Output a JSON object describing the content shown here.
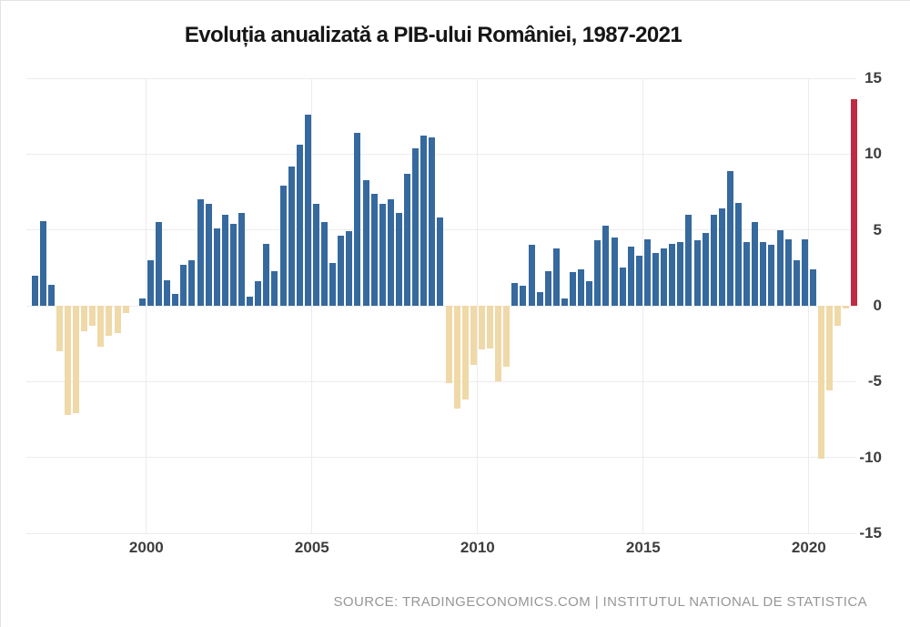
{
  "title": "Evoluția anualizată a PIB-ului României, 1987-2021",
  "source_line": "SOURCE: TRADINGECONOMICS.COM | INSTITUTUL NATIONAL DE STATISTICA",
  "colors": {
    "positive_bar": "#36699e",
    "negative_bar": "#f0d9a8",
    "highlight_bar": "#c02a43",
    "grid": "#ececec",
    "axis_text": "#3d3d3d",
    "source_text": "#969696",
    "title_text": "#161616"
  },
  "chart_data": {
    "type": "bar",
    "title": "Evoluția anualizată a PIB-ului României, 1987-2021",
    "ylabel": "",
    "xlabel": "",
    "frequency": "quarterly",
    "ylim": [
      -15,
      15
    ],
    "y_axis_ticks": [
      15,
      10,
      5,
      0,
      -5,
      -10,
      -15
    ],
    "x_axis_ticks": [
      "2000",
      "2005",
      "2010",
      "2015",
      "2020"
    ],
    "grid": true,
    "legend": "none",
    "highlight_last_bar": true,
    "labels": [
      "1996 Q3",
      "1996 Q4",
      "1997 Q1",
      "1997 Q2",
      "1997 Q3",
      "1997 Q4",
      "1998 Q1",
      "1998 Q2",
      "1998 Q3",
      "1998 Q4",
      "1999 Q1",
      "1999 Q2",
      "1999 Q3",
      "1999 Q4",
      "2000 Q1",
      "2000 Q2",
      "2000 Q3",
      "2000 Q4",
      "2001 Q1",
      "2001 Q2",
      "2001 Q3",
      "2001 Q4",
      "2002 Q1",
      "2002 Q2",
      "2002 Q3",
      "2002 Q4",
      "2003 Q1",
      "2003 Q2",
      "2003 Q3",
      "2003 Q4",
      "2004 Q1",
      "2004 Q2",
      "2004 Q3",
      "2004 Q4",
      "2005 Q1",
      "2005 Q2",
      "2005 Q3",
      "2005 Q4",
      "2006 Q1",
      "2006 Q2",
      "2006 Q3",
      "2006 Q4",
      "2007 Q1",
      "2007 Q2",
      "2007 Q3",
      "2007 Q4",
      "2008 Q1",
      "2008 Q2",
      "2008 Q3",
      "2008 Q4",
      "2009 Q1",
      "2009 Q2",
      "2009 Q3",
      "2009 Q4",
      "2010 Q1",
      "2010 Q2",
      "2010 Q3",
      "2010 Q4",
      "2011 Q1",
      "2011 Q2",
      "2011 Q3",
      "2011 Q4",
      "2012 Q1",
      "2012 Q2",
      "2012 Q3",
      "2012 Q4",
      "2013 Q1",
      "2013 Q2",
      "2013 Q3",
      "2013 Q4",
      "2014 Q1",
      "2014 Q2",
      "2014 Q3",
      "2014 Q4",
      "2015 Q1",
      "2015 Q2",
      "2015 Q3",
      "2015 Q4",
      "2016 Q1",
      "2016 Q2",
      "2016 Q3",
      "2016 Q4",
      "2017 Q1",
      "2017 Q2",
      "2017 Q3",
      "2017 Q4",
      "2018 Q1",
      "2018 Q2",
      "2018 Q3",
      "2018 Q4",
      "2019 Q1",
      "2019 Q2",
      "2019 Q3",
      "2019 Q4",
      "2020 Q1",
      "2020 Q2",
      "2020 Q3",
      "2020 Q4",
      "2021 Q1",
      "2021 Q2"
    ],
    "values": [
      2.0,
      5.6,
      1.4,
      -3.0,
      -7.2,
      -7.1,
      -1.7,
      -1.3,
      -2.7,
      -2.0,
      -1.8,
      -0.5,
      0.0,
      0.5,
      3.0,
      5.5,
      1.7,
      0.8,
      2.7,
      3.0,
      7.0,
      6.7,
      5.1,
      6.0,
      5.4,
      6.1,
      0.6,
      1.6,
      4.1,
      2.3,
      7.9,
      9.2,
      10.6,
      12.6,
      6.7,
      5.5,
      2.8,
      4.6,
      4.9,
      11.4,
      8.3,
      7.4,
      6.7,
      7.0,
      6.1,
      8.7,
      10.4,
      11.2,
      11.1,
      5.8,
      -5.1,
      -6.8,
      -6.2,
      -3.9,
      -2.9,
      -2.8,
      -5.0,
      -4.0,
      1.5,
      1.3,
      4.0,
      0.9,
      2.3,
      3.8,
      0.5,
      2.2,
      2.4,
      1.6,
      4.3,
      5.3,
      4.5,
      2.5,
      3.9,
      3.3,
      4.4,
      3.5,
      3.8,
      4.1,
      4.2,
      6.0,
      4.3,
      4.8,
      6.0,
      6.4,
      8.9,
      6.8,
      4.2,
      5.5,
      4.2,
      4.0,
      5.0,
      4.4,
      3.0,
      4.4,
      2.4,
      -10.1,
      -5.6,
      -1.3,
      -0.2,
      13.6
    ]
  }
}
